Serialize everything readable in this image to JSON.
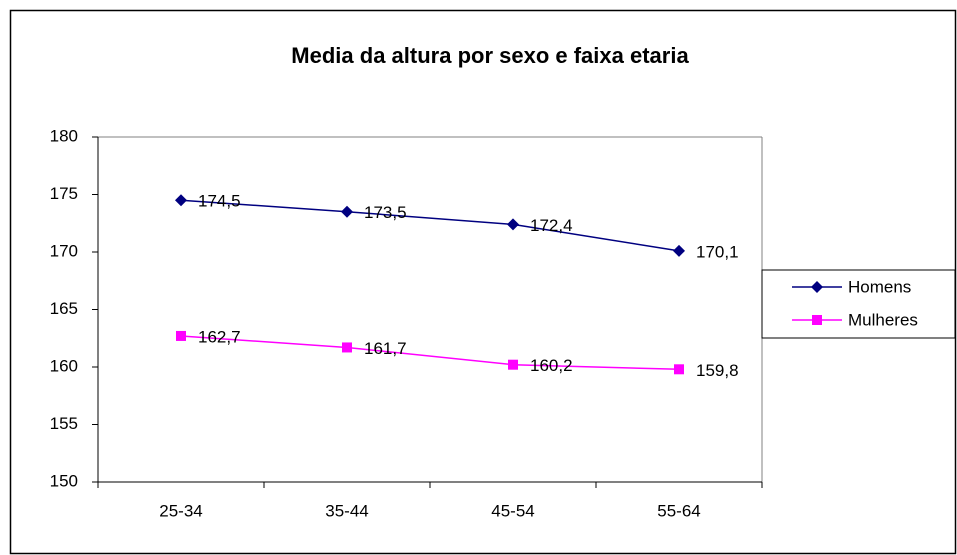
{
  "chart_data": {
    "type": "line",
    "title": "Media da altura por sexo e faixa etaria",
    "categories": [
      "25-34",
      "35-44",
      "45-54",
      "55-64"
    ],
    "series": [
      {
        "name": "Homens",
        "color": "#000080",
        "marker": "diamond",
        "values": [
          174.5,
          173.5,
          172.4,
          170.1
        ],
        "value_labels": [
          "174,5",
          "173,5",
          "172,4",
          "170,1"
        ]
      },
      {
        "name": "Mulheres",
        "color": "#ff00ff",
        "marker": "square",
        "values": [
          162.7,
          161.7,
          160.2,
          159.8
        ],
        "value_labels": [
          "162,7",
          "161,7",
          "160,2",
          "159,8"
        ]
      }
    ],
    "ylim": [
      150,
      180
    ],
    "yticks": [
      150,
      155,
      160,
      165,
      170,
      175,
      180
    ],
    "grid": false,
    "legend": "right"
  }
}
